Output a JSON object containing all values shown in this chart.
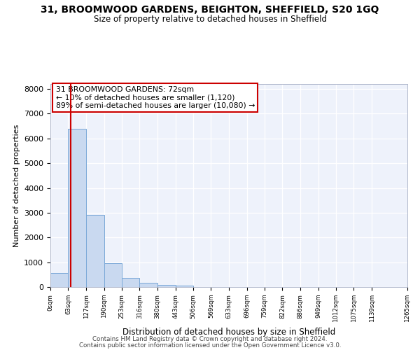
{
  "title": "31, BROOMWOOD GARDENS, BEIGHTON, SHEFFIELD, S20 1GQ",
  "subtitle": "Size of property relative to detached houses in Sheffield",
  "xlabel": "Distribution of detached houses by size in Sheffield",
  "ylabel": "Number of detached properties",
  "bar_values": [
    560,
    6380,
    2920,
    970,
    360,
    170,
    80,
    50,
    0,
    0,
    0,
    0,
    0,
    0,
    0,
    0,
    0,
    0,
    0
  ],
  "bin_edges": [
    0,
    63,
    127,
    190,
    253,
    316,
    380,
    443,
    506,
    569,
    633,
    696,
    759,
    822,
    886,
    949,
    1012,
    1075,
    1139,
    1265
  ],
  "tick_labels": [
    "0sqm",
    "63sqm",
    "127sqm",
    "190sqm",
    "253sqm",
    "316sqm",
    "380sqm",
    "443sqm",
    "506sqm",
    "569sqm",
    "633sqm",
    "696sqm",
    "759sqm",
    "822sqm",
    "886sqm",
    "949sqm",
    "1012sqm",
    "1075sqm",
    "1139sqm",
    "1265sqm"
  ],
  "bar_color": "#c9d9f0",
  "bar_edgecolor": "#7aa8d8",
  "vline_x": 72,
  "vline_color": "#cc0000",
  "annotation_line1": "31 BROOMWOOD GARDENS: 72sqm",
  "annotation_line2": "← 10% of detached houses are smaller (1,120)",
  "annotation_line3": "89% of semi-detached houses are larger (10,080) →",
  "annotation_box_color": "#ffffff",
  "annotation_box_edgecolor": "#cc0000",
  "ylim": [
    0,
    8200
  ],
  "yticks": [
    0,
    1000,
    2000,
    3000,
    4000,
    5000,
    6000,
    7000,
    8000
  ],
  "bg_color": "#eef2fb",
  "footer1": "Contains HM Land Registry data © Crown copyright and database right 2024.",
  "footer2": "Contains public sector information licensed under the Open Government Licence v3.0."
}
